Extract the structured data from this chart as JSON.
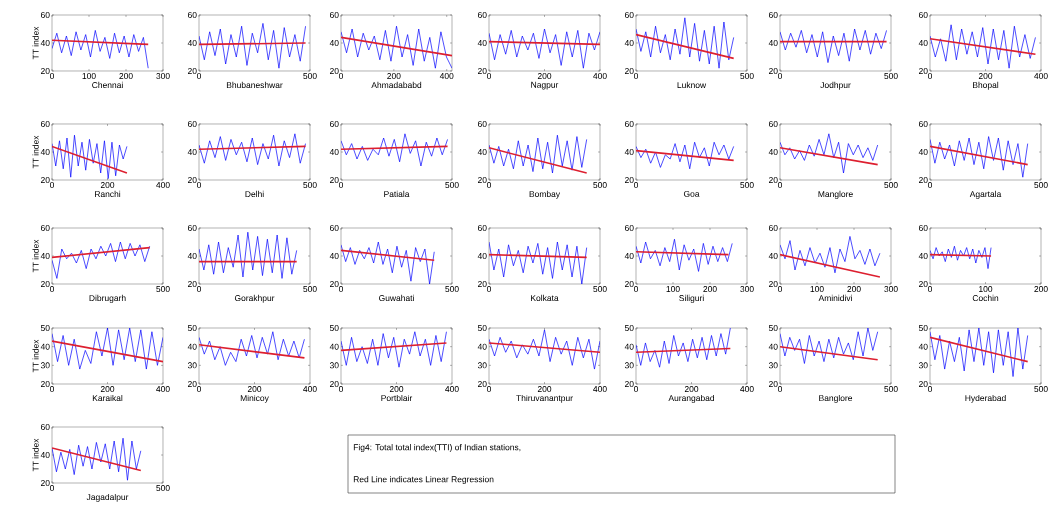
{
  "chart_data": [
    {
      "type": "line",
      "xlabel": "Chennai",
      "ylabel": "TT index",
      "xlim": [
        0,
        300
      ],
      "xticks": [
        0,
        100,
        200,
        300
      ],
      "ylim": [
        20,
        60
      ],
      "yticks": [
        20,
        40,
        60
      ],
      "x": [
        0,
        13,
        26,
        39,
        52,
        65,
        78,
        91,
        104,
        117,
        130,
        143,
        156,
        169,
        182,
        195,
        208,
        221,
        234,
        247,
        260
      ],
      "series": [
        {
          "color": "#0000ff",
          "values": [
            36,
            47,
            33,
            45,
            31,
            48,
            35,
            46,
            30,
            49,
            34,
            44,
            29,
            47,
            33,
            45,
            30,
            46,
            34,
            44,
            22
          ]
        },
        {
          "color": "#dd1f2f",
          "x": [
            0,
            260
          ],
          "values": [
            42,
            39
          ]
        }
      ]
    },
    {
      "type": "line",
      "xlabel": "Bhubaneshwar",
      "xlim": [
        0,
        500
      ],
      "xticks": [
        0,
        500
      ],
      "ylim": [
        20,
        60
      ],
      "yticks": [
        20,
        40,
        60
      ],
      "x": [
        0,
        24,
        48,
        72,
        96,
        120,
        144,
        168,
        192,
        216,
        240,
        264,
        288,
        312,
        336,
        360,
        384,
        408,
        432,
        456,
        480
      ],
      "series": [
        {
          "color": "#0000ff",
          "values": [
            45,
            28,
            48,
            31,
            50,
            25,
            46,
            30,
            52,
            24,
            47,
            33,
            54,
            28,
            49,
            22,
            51,
            30,
            46,
            27,
            52
          ]
        },
        {
          "color": "#dd1f2f",
          "x": [
            0,
            480
          ],
          "values": [
            39,
            40
          ]
        }
      ]
    },
    {
      "type": "line",
      "xlabel": "Ahmadababd",
      "xlim": [
        0,
        420
      ],
      "xticks": [
        0,
        200,
        400
      ],
      "ylim": [
        20,
        60
      ],
      "yticks": [
        20,
        40,
        60
      ],
      "x": [
        0,
        21,
        42,
        63,
        84,
        105,
        126,
        147,
        168,
        189,
        210,
        231,
        252,
        273,
        294,
        315,
        336,
        357,
        378,
        399,
        420
      ],
      "series": [
        {
          "color": "#0000ff",
          "values": [
            48,
            33,
            50,
            30,
            47,
            35,
            45,
            28,
            49,
            27,
            52,
            30,
            46,
            24,
            50,
            27,
            44,
            22,
            48,
            30,
            22
          ]
        },
        {
          "color": "#dd1f2f",
          "x": [
            0,
            420
          ],
          "values": [
            44,
            31
          ]
        }
      ]
    },
    {
      "type": "line",
      "xlabel": "Nagpur",
      "xlim": [
        0,
        400
      ],
      "xticks": [
        0,
        200,
        400
      ],
      "ylim": [
        20,
        60
      ],
      "yticks": [
        20,
        40,
        60
      ],
      "x": [
        0,
        20,
        40,
        60,
        80,
        100,
        120,
        140,
        160,
        180,
        200,
        220,
        240,
        260,
        280,
        300,
        320,
        340,
        360,
        380,
        400
      ],
      "series": [
        {
          "color": "#0000ff",
          "values": [
            47,
            28,
            46,
            32,
            49,
            30,
            45,
            35,
            47,
            29,
            50,
            33,
            46,
            24,
            48,
            30,
            49,
            22,
            47,
            35,
            48
          ]
        },
        {
          "color": "#dd1f2f",
          "x": [
            0,
            400
          ],
          "values": [
            41,
            39
          ]
        }
      ]
    },
    {
      "type": "line",
      "xlabel": "Luknow",
      "xlim": [
        0,
        500
      ],
      "xticks": [
        0,
        500
      ],
      "ylim": [
        20,
        60
      ],
      "yticks": [
        20,
        40,
        60
      ],
      "x": [
        0,
        22,
        44,
        66,
        88,
        110,
        132,
        154,
        176,
        198,
        220,
        242,
        264,
        286,
        308,
        330,
        352,
        374,
        396,
        418,
        440
      ],
      "series": [
        {
          "color": "#0000ff",
          "values": [
            50,
            34,
            48,
            30,
            52,
            33,
            46,
            28,
            50,
            32,
            58,
            30,
            54,
            27,
            49,
            25,
            52,
            22,
            55,
            28,
            44
          ]
        },
        {
          "color": "#dd1f2f",
          "x": [
            0,
            440
          ],
          "values": [
            46,
            29
          ]
        }
      ]
    },
    {
      "type": "line",
      "xlabel": "Jodhpur",
      "xlim": [
        0,
        500
      ],
      "xticks": [
        0,
        500
      ],
      "ylim": [
        20,
        60
      ],
      "yticks": [
        20,
        40,
        60
      ],
      "x": [
        0,
        24,
        48,
        72,
        96,
        120,
        144,
        168,
        192,
        216,
        240,
        264,
        288,
        312,
        336,
        360,
        384,
        408,
        432,
        456,
        480
      ],
      "series": [
        {
          "color": "#0000ff",
          "values": [
            48,
            35,
            47,
            37,
            49,
            33,
            46,
            30,
            48,
            26,
            45,
            31,
            47,
            27,
            50,
            35,
            49,
            32,
            47,
            36,
            49
          ]
        },
        {
          "color": "#dd1f2f",
          "x": [
            0,
            480
          ],
          "values": [
            41,
            41
          ]
        }
      ]
    },
    {
      "type": "line",
      "xlabel": "Bhopal",
      "xlim": [
        0,
        400
      ],
      "xticks": [
        0,
        200,
        400
      ],
      "ylim": [
        20,
        60
      ],
      "yticks": [
        20,
        40,
        60
      ],
      "x": [
        0,
        19,
        38,
        57,
        76,
        95,
        114,
        133,
        152,
        171,
        190,
        209,
        228,
        247,
        266,
        285,
        304,
        323,
        342,
        361,
        380
      ],
      "series": [
        {
          "color": "#0000ff",
          "values": [
            45,
            30,
            43,
            27,
            53,
            28,
            50,
            32,
            48,
            30,
            51,
            25,
            50,
            28,
            49,
            22,
            52,
            30,
            46,
            29,
            44
          ]
        },
        {
          "color": "#dd1f2f",
          "x": [
            0,
            380
          ],
          "values": [
            43,
            32
          ]
        }
      ]
    },
    {
      "type": "line",
      "xlabel": "Ranchi",
      "ylabel": "TT index",
      "xlim": [
        0,
        400
      ],
      "xticks": [
        0,
        200,
        400
      ],
      "ylim": [
        20,
        60
      ],
      "yticks": [
        20,
        40,
        60
      ],
      "x": [
        0,
        13.5,
        27,
        40.5,
        54,
        67.5,
        81,
        94.5,
        108,
        121.5,
        135,
        148.5,
        162,
        175.5,
        189,
        202.5,
        216,
        229.5,
        243,
        256.5,
        270
      ],
      "series": [
        {
          "color": "#0000ff",
          "values": [
            46,
            30,
            48,
            28,
            50,
            22,
            52,
            30,
            47,
            27,
            49,
            32,
            46,
            25,
            48,
            21,
            47,
            23,
            45,
            35,
            44
          ]
        },
        {
          "color": "#dd1f2f",
          "x": [
            0,
            270
          ],
          "values": [
            44,
            25
          ]
        }
      ]
    },
    {
      "type": "line",
      "xlabel": "Delhi",
      "xlim": [
        0,
        500
      ],
      "xticks": [
        0,
        500
      ],
      "ylim": [
        20,
        60
      ],
      "yticks": [
        20,
        40,
        60
      ],
      "x": [
        0,
        24,
        48,
        72,
        96,
        120,
        144,
        168,
        192,
        216,
        240,
        264,
        288,
        312,
        336,
        360,
        384,
        408,
        432,
        456,
        480
      ],
      "series": [
        {
          "color": "#0000ff",
          "values": [
            45,
            32,
            48,
            36,
            51,
            34,
            49,
            38,
            47,
            33,
            50,
            31,
            46,
            35,
            52,
            30,
            48,
            36,
            53,
            32,
            46
          ]
        },
        {
          "color": "#dd1f2f",
          "x": [
            0,
            480
          ],
          "values": [
            42,
            44
          ]
        }
      ]
    },
    {
      "type": "line",
      "xlabel": "Patiala",
      "xlim": [
        0,
        500
      ],
      "xticks": [
        0,
        500
      ],
      "ylim": [
        20,
        60
      ],
      "yticks": [
        20,
        40,
        60
      ],
      "x": [
        0,
        24,
        48,
        72,
        96,
        120,
        144,
        168,
        192,
        216,
        240,
        264,
        288,
        312,
        336,
        360,
        384,
        408,
        432,
        456,
        480
      ],
      "series": [
        {
          "color": "#0000ff",
          "values": [
            48,
            38,
            46,
            35,
            44,
            34,
            42,
            38,
            50,
            37,
            49,
            33,
            53,
            39,
            48,
            30,
            47,
            37,
            50,
            38,
            49
          ]
        },
        {
          "color": "#dd1f2f",
          "x": [
            0,
            480
          ],
          "values": [
            42,
            44
          ]
        }
      ]
    },
    {
      "type": "line",
      "xlabel": "Bombay",
      "xlim": [
        0,
        500
      ],
      "xticks": [
        0,
        500
      ],
      "ylim": [
        20,
        60
      ],
      "yticks": [
        20,
        40,
        60
      ],
      "x": [
        0,
        22,
        44,
        66,
        88,
        110,
        132,
        154,
        176,
        198,
        220,
        242,
        264,
        286,
        308,
        330,
        352,
        374,
        396,
        418,
        440
      ],
      "series": [
        {
          "color": "#0000ff",
          "values": [
            45,
            32,
            44,
            30,
            42,
            28,
            48,
            30,
            45,
            26,
            50,
            28,
            47,
            25,
            52,
            30,
            48,
            27,
            51,
            29,
            49
          ]
        },
        {
          "color": "#dd1f2f",
          "x": [
            0,
            440
          ],
          "values": [
            43,
            25
          ]
        }
      ]
    },
    {
      "type": "line",
      "xlabel": "Goa",
      "xlim": [
        0,
        500
      ],
      "xticks": [
        0,
        500
      ],
      "ylim": [
        20,
        60
      ],
      "yticks": [
        20,
        40,
        60
      ],
      "x": [
        0,
        22,
        44,
        66,
        88,
        110,
        132,
        154,
        176,
        198,
        220,
        242,
        264,
        286,
        308,
        330,
        352,
        374,
        396,
        418,
        440
      ],
      "series": [
        {
          "color": "#0000ff",
          "values": [
            44,
            36,
            42,
            32,
            40,
            29,
            38,
            35,
            46,
            33,
            45,
            28,
            47,
            36,
            43,
            30,
            47,
            38,
            45,
            35,
            44
          ]
        },
        {
          "color": "#dd1f2f",
          "x": [
            0,
            440
          ],
          "values": [
            41,
            34
          ]
        }
      ]
    },
    {
      "type": "line",
      "xlabel": "Manglore",
      "xlim": [
        0,
        500
      ],
      "xticks": [
        0,
        500
      ],
      "ylim": [
        20,
        60
      ],
      "yticks": [
        20,
        40,
        60
      ],
      "x": [
        0,
        22,
        44,
        66,
        88,
        110,
        132,
        154,
        176,
        198,
        220,
        242,
        264,
        286,
        308,
        330,
        352,
        374,
        396,
        418,
        440
      ],
      "series": [
        {
          "color": "#0000ff",
          "values": [
            47,
            38,
            43,
            35,
            41,
            34,
            45,
            37,
            49,
            38,
            53,
            36,
            47,
            25,
            46,
            38,
            45,
            36,
            43,
            34,
            45
          ]
        },
        {
          "color": "#dd1f2f",
          "x": [
            0,
            440
          ],
          "values": [
            43,
            31
          ]
        }
      ]
    },
    {
      "type": "line",
      "xlabel": "Agartala",
      "xlim": [
        0,
        500
      ],
      "xticks": [
        0,
        500
      ],
      "ylim": [
        20,
        60
      ],
      "yticks": [
        20,
        40,
        60
      ],
      "x": [
        0,
        22,
        44,
        66,
        88,
        110,
        132,
        154,
        176,
        198,
        220,
        242,
        264,
        286,
        308,
        330,
        352,
        374,
        396,
        418,
        440
      ],
      "series": [
        {
          "color": "#0000ff",
          "values": [
            49,
            32,
            47,
            35,
            45,
            30,
            48,
            34,
            50,
            31,
            47,
            28,
            51,
            34,
            50,
            27,
            48,
            31,
            46,
            22,
            46
          ]
        },
        {
          "color": "#dd1f2f",
          "x": [
            0,
            440
          ],
          "values": [
            44,
            31
          ]
        }
      ]
    },
    {
      "type": "line",
      "xlabel": "Dibrugarh",
      "ylabel": "TT index",
      "xlim": [
        0,
        500
      ],
      "xticks": [
        0,
        500
      ],
      "ylim": [
        20,
        60
      ],
      "yticks": [
        20,
        40,
        60
      ],
      "x": [
        0,
        22,
        44,
        66,
        88,
        110,
        132,
        154,
        176,
        198,
        220,
        242,
        264,
        286,
        308,
        330,
        352,
        374,
        396,
        418,
        440
      ],
      "series": [
        {
          "color": "#0000ff",
          "values": [
            37,
            24,
            45,
            38,
            42,
            35,
            44,
            31,
            45,
            38,
            47,
            40,
            49,
            36,
            50,
            38,
            49,
            40,
            48,
            36,
            47
          ]
        },
        {
          "color": "#dd1f2f",
          "x": [
            0,
            440
          ],
          "values": [
            39,
            46
          ]
        }
      ]
    },
    {
      "type": "line",
      "xlabel": "Gorakhpur",
      "xlim": [
        0,
        500
      ],
      "xticks": [
        0,
        500
      ],
      "ylim": [
        20,
        60
      ],
      "yticks": [
        20,
        40,
        60
      ],
      "x": [
        0,
        22,
        44,
        66,
        88,
        110,
        132,
        154,
        176,
        198,
        220,
        242,
        264,
        286,
        308,
        330,
        352,
        374,
        396,
        418,
        440
      ],
      "series": [
        {
          "color": "#0000ff",
          "values": [
            45,
            30,
            48,
            27,
            50,
            28,
            46,
            32,
            55,
            25,
            57,
            30,
            54,
            26,
            52,
            28,
            55,
            24,
            53,
            27,
            44
          ]
        },
        {
          "color": "#dd1f2f",
          "x": [
            0,
            440
          ],
          "values": [
            36,
            36
          ]
        }
      ]
    },
    {
      "type": "line",
      "xlabel": "Guwahati",
      "xlim": [
        0,
        500
      ],
      "xticks": [
        0,
        500
      ],
      "ylim": [
        20,
        60
      ],
      "yticks": [
        20,
        40,
        60
      ],
      "x": [
        0,
        21,
        42,
        63,
        84,
        105,
        126,
        147,
        168,
        189,
        210,
        231,
        252,
        273,
        294,
        315,
        336,
        357,
        378,
        399,
        420
      ],
      "series": [
        {
          "color": "#0000ff",
          "values": [
            48,
            36,
            46,
            34,
            44,
            38,
            46,
            35,
            50,
            34,
            45,
            28,
            47,
            32,
            44,
            22,
            46,
            36,
            45,
            20,
            43
          ]
        },
        {
          "color": "#dd1f2f",
          "x": [
            0,
            420
          ],
          "values": [
            44,
            37
          ]
        }
      ]
    },
    {
      "type": "line",
      "xlabel": "Kolkata",
      "xlim": [
        0,
        500
      ],
      "xticks": [
        0,
        500
      ],
      "ylim": [
        20,
        60
      ],
      "yticks": [
        20,
        40,
        60
      ],
      "x": [
        0,
        22,
        44,
        66,
        88,
        110,
        132,
        154,
        176,
        198,
        220,
        242,
        264,
        286,
        308,
        330,
        352,
        374,
        396,
        418,
        440
      ],
      "series": [
        {
          "color": "#0000ff",
          "values": [
            50,
            30,
            45,
            25,
            48,
            33,
            44,
            28,
            47,
            35,
            49,
            27,
            46,
            24,
            50,
            30,
            48,
            25,
            47,
            20,
            46
          ]
        },
        {
          "color": "#dd1f2f",
          "x": [
            0,
            440
          ],
          "values": [
            41,
            39
          ]
        }
      ]
    },
    {
      "type": "line",
      "xlabel": "Siliguri",
      "xlim": [
        0,
        300
      ],
      "xticks": [
        0,
        100,
        200,
        300
      ],
      "ylim": [
        20,
        60
      ],
      "yticks": [
        20,
        40,
        60
      ],
      "x": [
        0,
        13,
        26,
        39,
        52,
        65,
        78,
        91,
        104,
        117,
        130,
        143,
        156,
        169,
        182,
        195,
        208,
        221,
        234,
        247,
        260
      ],
      "series": [
        {
          "color": "#0000ff",
          "values": [
            47,
            35,
            50,
            38,
            44,
            33,
            46,
            36,
            52,
            30,
            48,
            37,
            45,
            29,
            49,
            34,
            47,
            36,
            46,
            36,
            49
          ]
        },
        {
          "color": "#dd1f2f",
          "x": [
            0,
            250
          ],
          "values": [
            43,
            41
          ]
        }
      ]
    },
    {
      "type": "line",
      "xlabel": "Aminidivi",
      "xlim": [
        0,
        300
      ],
      "xticks": [
        0,
        100,
        200,
        300
      ],
      "ylim": [
        20,
        60
      ],
      "yticks": [
        20,
        40,
        60
      ],
      "x": [
        0,
        13.5,
        27,
        40.5,
        54,
        67.5,
        81,
        94.5,
        108,
        121.5,
        135,
        148.5,
        162,
        175.5,
        189,
        202.5,
        216,
        229.5,
        243,
        256.5,
        270
      ],
      "series": [
        {
          "color": "#0000ff",
          "values": [
            48,
            38,
            51,
            30,
            44,
            33,
            46,
            35,
            42,
            32,
            46,
            28,
            45,
            36,
            54,
            38,
            44,
            34,
            45,
            33,
            42
          ]
        },
        {
          "color": "#dd1f2f",
          "x": [
            0,
            270
          ],
          "values": [
            41,
            25
          ]
        }
      ]
    },
    {
      "type": "line",
      "xlabel": "Cochin",
      "xlim": [
        0,
        200
      ],
      "xticks": [
        0,
        100,
        200
      ],
      "ylim": [
        20,
        60
      ],
      "yticks": [
        20,
        40,
        60
      ],
      "x": [
        0,
        5.5,
        11,
        16.5,
        22,
        27.5,
        33,
        38.5,
        44,
        49.5,
        55,
        60.5,
        66,
        71.5,
        77,
        82.5,
        88,
        93.5,
        99,
        104.5,
        110
      ],
      "series": [
        {
          "color": "#0000ff",
          "values": [
            44,
            38,
            46,
            40,
            43,
            36,
            45,
            39,
            47,
            37,
            44,
            40,
            46,
            38,
            45,
            35,
            44,
            39,
            46,
            31,
            46
          ]
        },
        {
          "color": "#dd1f2f",
          "x": [
            0,
            110
          ],
          "values": [
            41,
            40
          ]
        }
      ]
    },
    {
      "type": "line",
      "xlabel": "Karaikal",
      "ylabel": "TT index",
      "xlim": [
        0,
        400
      ],
      "xticks": [
        0,
        200,
        400
      ],
      "ylim": [
        20,
        50
      ],
      "yticks": [
        20,
        30,
        40,
        50
      ],
      "x": [
        0,
        20,
        40,
        60,
        80,
        100,
        120,
        140,
        160,
        180,
        200,
        220,
        240,
        260,
        280,
        300,
        320,
        340,
        360,
        380,
        400
      ],
      "series": [
        {
          "color": "#0000ff",
          "values": [
            47,
            32,
            46,
            30,
            44,
            28,
            38,
            31,
            48,
            35,
            50,
            30,
            49,
            33,
            50,
            32,
            49,
            28,
            48,
            30,
            45
          ]
        },
        {
          "color": "#dd1f2f",
          "x": [
            0,
            400
          ],
          "values": [
            43,
            32
          ]
        }
      ]
    },
    {
      "type": "line",
      "xlabel": "Minicoy",
      "xlim": [
        0,
        400
      ],
      "xticks": [
        0,
        200,
        400
      ],
      "ylim": [
        20,
        50
      ],
      "yticks": [
        20,
        30,
        40,
        50
      ],
      "x": [
        0,
        19,
        38,
        57,
        76,
        95,
        114,
        133,
        152,
        171,
        190,
        209,
        228,
        247,
        266,
        285,
        304,
        323,
        342,
        361,
        380
      ],
      "series": [
        {
          "color": "#0000ff",
          "values": [
            45,
            36,
            43,
            33,
            40,
            30,
            37,
            32,
            44,
            35,
            46,
            34,
            45,
            36,
            48,
            33,
            44,
            35,
            43,
            34,
            44
          ]
        },
        {
          "color": "#dd1f2f",
          "x": [
            0,
            380
          ],
          "values": [
            41,
            34
          ]
        }
      ]
    },
    {
      "type": "line",
      "xlabel": "Portblair",
      "xlim": [
        0,
        400
      ],
      "xticks": [
        0,
        200,
        400
      ],
      "ylim": [
        20,
        50
      ],
      "yticks": [
        20,
        30,
        40,
        50
      ],
      "x": [
        0,
        19,
        38,
        57,
        76,
        95,
        114,
        133,
        152,
        171,
        190,
        209,
        228,
        247,
        266,
        285,
        304,
        323,
        342,
        361,
        380
      ],
      "series": [
        {
          "color": "#0000ff",
          "values": [
            43,
            30,
            45,
            32,
            40,
            31,
            44,
            30,
            47,
            34,
            45,
            29,
            44,
            36,
            48,
            35,
            44,
            30,
            46,
            32,
            48
          ]
        },
        {
          "color": "#dd1f2f",
          "x": [
            0,
            380
          ],
          "values": [
            38,
            42
          ]
        }
      ]
    },
    {
      "type": "line",
      "xlabel": "Thiruvanantpur",
      "xlim": [
        0,
        400
      ],
      "xticks": [
        0,
        200,
        400
      ],
      "ylim": [
        20,
        50
      ],
      "yticks": [
        20,
        30,
        40,
        50
      ],
      "x": [
        0,
        20,
        40,
        60,
        80,
        100,
        120,
        140,
        160,
        180,
        200,
        220,
        240,
        260,
        280,
        300,
        320,
        340,
        360,
        380,
        400
      ],
      "series": [
        {
          "color": "#0000ff",
          "values": [
            44,
            35,
            45,
            37,
            43,
            34,
            41,
            36,
            44,
            35,
            49,
            32,
            45,
            36,
            43,
            30,
            45,
            34,
            44,
            28,
            43
          ]
        },
        {
          "color": "#dd1f2f",
          "x": [
            0,
            400
          ],
          "values": [
            42,
            37
          ]
        }
      ]
    },
    {
      "type": "line",
      "xlabel": "Aurangabad",
      "xlim": [
        0,
        400
      ],
      "xticks": [
        0,
        200,
        400
      ],
      "ylim": [
        20,
        50
      ],
      "yticks": [
        20,
        30,
        40,
        50
      ],
      "x": [
        0,
        17,
        34,
        51,
        68,
        85,
        102,
        119,
        136,
        153,
        170,
        187,
        204,
        221,
        238,
        255,
        272,
        289,
        306,
        323,
        340
      ],
      "series": [
        {
          "color": "#0000ff",
          "values": [
            41,
            30,
            42,
            32,
            38,
            29,
            43,
            31,
            46,
            35,
            42,
            32,
            44,
            34,
            45,
            33,
            46,
            35,
            47,
            36,
            50
          ]
        },
        {
          "color": "#dd1f2f",
          "x": [
            0,
            340
          ],
          "values": [
            37,
            39
          ]
        }
      ]
    },
    {
      "type": "line",
      "xlabel": "Banglore",
      "xlim": [
        0,
        500
      ],
      "xticks": [
        0,
        500
      ],
      "ylim": [
        20,
        50
      ],
      "yticks": [
        20,
        30,
        40,
        50
      ],
      "x": [
        0,
        22,
        44,
        66,
        88,
        110,
        132,
        154,
        176,
        198,
        220,
        242,
        264,
        286,
        308,
        330,
        352,
        374,
        396,
        418,
        440
      ],
      "series": [
        {
          "color": "#0000ff",
          "values": [
            47,
            35,
            45,
            38,
            44,
            31,
            46,
            35,
            43,
            32,
            44,
            34,
            45,
            36,
            42,
            33,
            48,
            35,
            50,
            38,
            48
          ]
        },
        {
          "color": "#dd1f2f",
          "x": [
            0,
            440
          ],
          "values": [
            40,
            33
          ]
        }
      ]
    },
    {
      "type": "line",
      "xlabel": "Hyderabad",
      "xlim": [
        0,
        500
      ],
      "xticks": [
        0,
        500
      ],
      "ylim": [
        20,
        50
      ],
      "yticks": [
        20,
        30,
        40,
        50
      ],
      "x": [
        0,
        22,
        44,
        66,
        88,
        110,
        132,
        154,
        176,
        198,
        220,
        242,
        264,
        286,
        308,
        330,
        352,
        374,
        396,
        418,
        440
      ],
      "series": [
        {
          "color": "#0000ff",
          "values": [
            48,
            33,
            46,
            28,
            43,
            32,
            45,
            27,
            49,
            32,
            50,
            30,
            48,
            26,
            49,
            30,
            48,
            24,
            50,
            28,
            46
          ]
        },
        {
          "color": "#dd1f2f",
          "x": [
            0,
            440
          ],
          "values": [
            45,
            32
          ]
        }
      ]
    },
    {
      "type": "line",
      "xlabel": "Jagadalpur",
      "ylabel": "TT index",
      "xlim": [
        0,
        500
      ],
      "xticks": [
        0,
        500
      ],
      "ylim": [
        20,
        60
      ],
      "yticks": [
        20,
        40,
        60
      ],
      "x": [
        0,
        20,
        40,
        60,
        80,
        100,
        120,
        140,
        160,
        180,
        200,
        220,
        240,
        260,
        280,
        300,
        320,
        340,
        360,
        380,
        400
      ],
      "series": [
        {
          "color": "#0000ff",
          "values": [
            45,
            28,
            42,
            30,
            44,
            26,
            47,
            32,
            46,
            30,
            49,
            35,
            48,
            30,
            50,
            28,
            52,
            22,
            50,
            30,
            43
          ]
        },
        {
          "color": "#dd1f2f",
          "x": [
            0,
            400
          ],
          "values": [
            45,
            29
          ]
        }
      ]
    },
    {
      "type": "other",
      "annotations": [
        "Fig4: Total total index(TTI) of Indian stations,",
        "Red Line indicates Linear Regression"
      ]
    }
  ]
}
